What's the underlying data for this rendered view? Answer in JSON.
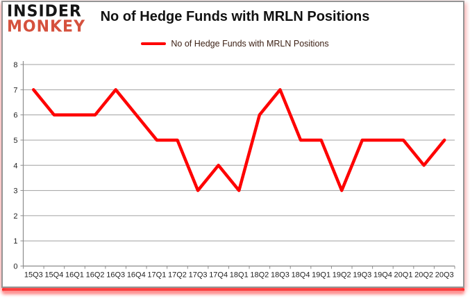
{
  "logo": {
    "line1": "INSIDER",
    "line2": "MONKEY"
  },
  "header": {
    "title": "No of Hedge Funds with MRLN Positions"
  },
  "legend": {
    "label": "No of Hedge Funds with MRLN Positions"
  },
  "colors": {
    "series_red": "#fe0000",
    "logo_black": "#151515",
    "logo_red": "#d5513d",
    "grid": "#a0a0a0",
    "axis": "#8c8c8c",
    "border_gray": "#949494",
    "glow_red": "#ff2020",
    "label_text": "#1f1f1f"
  },
  "chart_data": {
    "type": "line",
    "title": "No of Hedge Funds with MRLN Positions",
    "categories": [
      "15Q3",
      "15Q4",
      "16Q1",
      "16Q2",
      "16Q3",
      "16Q4",
      "17Q1",
      "17Q2",
      "17Q3",
      "17Q4",
      "18Q1",
      "18Q2",
      "18Q3",
      "18Q4",
      "19Q1",
      "19Q2",
      "19Q3",
      "19Q4",
      "20Q1",
      "20Q2",
      "20Q3"
    ],
    "series": [
      {
        "name": "No of Hedge Funds with MRLN Positions",
        "color": "#fe0000",
        "values": [
          7,
          6,
          6,
          6,
          7,
          6,
          5,
          5,
          3,
          4,
          3,
          6,
          7,
          5,
          5,
          3,
          5,
          5,
          5,
          4,
          5
        ]
      }
    ],
    "xlabel": "",
    "ylabel": "",
    "ylim": [
      0,
      8
    ],
    "yticks": [
      0,
      1,
      2,
      3,
      4,
      5,
      6,
      7,
      8
    ],
    "grid": true,
    "legend_position": "top-center"
  }
}
